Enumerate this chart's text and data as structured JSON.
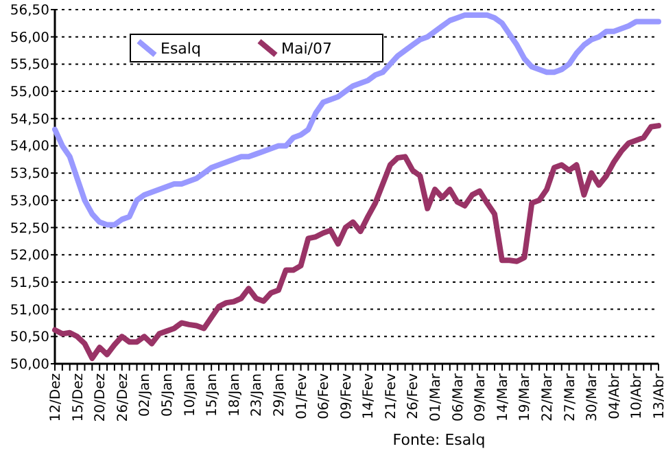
{
  "chart_data": {
    "type": "line",
    "categories": [
      "12/Dez",
      null,
      null,
      "15/Dez",
      null,
      null,
      "20/Dez",
      null,
      null,
      "26/Dez",
      null,
      null,
      "02/Jan",
      null,
      null,
      "05/Jan",
      null,
      null,
      "10/Jan",
      null,
      null,
      "15/Jan",
      null,
      null,
      "18/Jan",
      null,
      null,
      "23/Jan",
      null,
      null,
      "29/Jan",
      null,
      null,
      "01/Fev",
      null,
      null,
      "06/Fev",
      null,
      null,
      "09/Fev",
      null,
      null,
      "14/Fev",
      null,
      null,
      "21/Fev",
      null,
      null,
      "26/Fev",
      null,
      null,
      "01/Mar",
      null,
      null,
      "06/Mar",
      null,
      null,
      "09/Mar",
      null,
      null,
      "14/Mar",
      null,
      null,
      "19/Mar",
      null,
      null,
      "22/Mar",
      null,
      null,
      "27/Mar",
      null,
      null,
      "30/Mar",
      null,
      null,
      "04/Abr",
      null,
      null,
      "10/Abr",
      null,
      null,
      "13/Abr"
    ],
    "series": [
      {
        "name": "Esalq",
        "color": "#9999ff",
        "values": [
          54.3,
          54.0,
          53.8,
          53.4,
          53.0,
          52.75,
          52.6,
          52.55,
          52.55,
          52.65,
          52.7,
          53.0,
          53.1,
          53.15,
          53.2,
          53.25,
          53.3,
          53.3,
          53.35,
          53.4,
          53.5,
          53.6,
          53.65,
          53.7,
          53.75,
          53.8,
          53.8,
          53.85,
          53.9,
          53.95,
          54.0,
          54.0,
          54.15,
          54.2,
          54.3,
          54.6,
          54.8,
          54.85,
          54.9,
          55.0,
          55.1,
          55.15,
          55.2,
          55.3,
          55.35,
          55.5,
          55.65,
          55.75,
          55.85,
          55.95,
          56.0,
          56.1,
          56.2,
          56.3,
          56.35,
          56.4,
          56.4,
          56.4,
          56.4,
          56.35,
          56.25,
          56.05,
          55.85,
          55.6,
          55.45,
          55.4,
          55.35,
          55.35,
          55.4,
          55.5,
          55.7,
          55.85,
          55.95,
          56.0,
          56.1,
          56.1,
          56.15,
          56.2,
          56.28,
          56.28,
          56.28,
          56.28
        ]
      },
      {
        "name": "Mai/07",
        "color": "#993366",
        "values": [
          50.62,
          50.55,
          50.57,
          50.5,
          50.37,
          50.1,
          50.3,
          50.17,
          50.35,
          50.5,
          50.4,
          50.4,
          50.5,
          50.37,
          50.55,
          50.6,
          50.65,
          50.75,
          50.72,
          50.7,
          50.65,
          50.85,
          51.05,
          51.12,
          51.14,
          51.2,
          51.38,
          51.2,
          51.15,
          51.3,
          51.35,
          51.72,
          51.72,
          51.8,
          52.3,
          52.33,
          52.4,
          52.45,
          52.2,
          52.5,
          52.6,
          52.43,
          52.7,
          52.95,
          53.3,
          53.65,
          53.78,
          53.8,
          53.55,
          53.45,
          52.85,
          53.2,
          53.05,
          53.2,
          52.97,
          52.9,
          53.1,
          53.17,
          52.95,
          52.75,
          51.9,
          51.9,
          51.88,
          51.95,
          52.95,
          53.0,
          53.2,
          53.6,
          53.65,
          53.55,
          53.65,
          53.1,
          53.5,
          53.28,
          53.45,
          53.7,
          53.9,
          54.05,
          54.1,
          54.15,
          54.35,
          54.37
        ]
      }
    ],
    "ylim": [
      50,
      56.5
    ],
    "yticks": [
      {
        "value": 50,
        "label": "50,00"
      },
      {
        "value": 50.5,
        "label": "50,50"
      },
      {
        "value": 51,
        "label": "51,00"
      },
      {
        "value": 51.5,
        "label": "51,50"
      },
      {
        "value": 52,
        "label": "52,00"
      },
      {
        "value": 52.5,
        "label": "52,50"
      },
      {
        "value": 53,
        "label": "53,00"
      },
      {
        "value": 53.5,
        "label": "53,50"
      },
      {
        "value": 54,
        "label": "54,00"
      },
      {
        "value": 54.5,
        "label": "54,50"
      },
      {
        "value": 55,
        "label": "55,00"
      },
      {
        "value": 55.5,
        "label": "55,50"
      },
      {
        "value": 56,
        "label": "56,00"
      },
      {
        "value": 56.5,
        "label": "56,50"
      }
    ],
    "grid": "y",
    "legend": "top left",
    "marker": "none",
    "line_style": "solid",
    "annotations": [
      "Fonte: Esalq"
    ]
  }
}
